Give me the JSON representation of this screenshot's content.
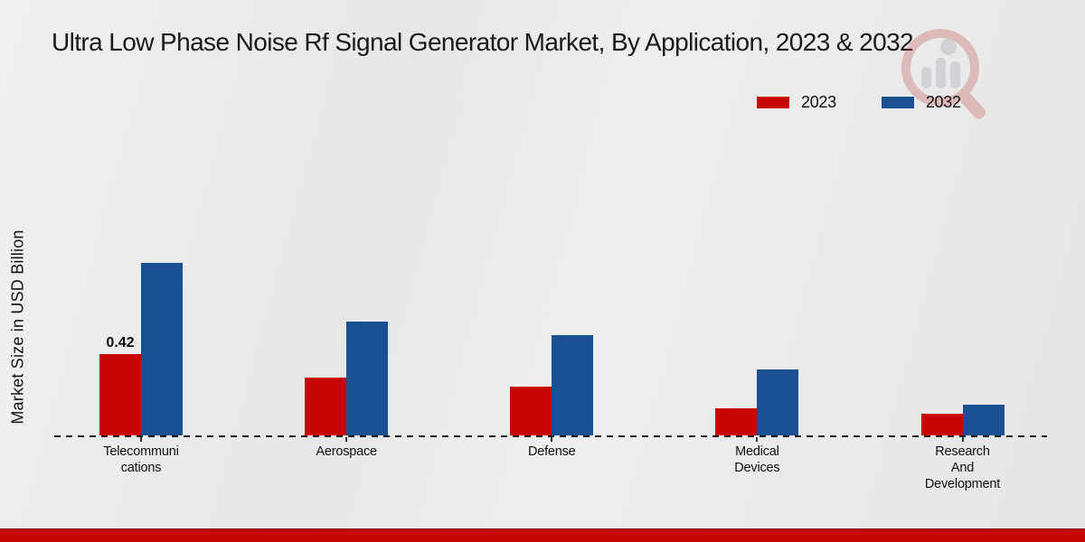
{
  "page": {
    "watermark_icon": "magnifier-analytics-logo",
    "footer_color": "#c40707"
  },
  "chart_data": {
    "type": "bar",
    "title": "Ultra Low Phase Noise Rf Signal Generator Market, By Application, 2023 & 2032",
    "ylabel": "Market Size in USD Billion",
    "xlabel": "",
    "categories": [
      "Telecommunications",
      "Aerospace",
      "Defense",
      "Medical Devices",
      "Research And Development"
    ],
    "tick_labels": [
      "Telecommuni\ncations",
      "Aerospace",
      "Defense",
      "Medical\nDevices",
      "Research\nAnd\nDevelopment"
    ],
    "series": [
      {
        "name": "2023",
        "color": "#c80404",
        "values": [
          0.42,
          0.3,
          0.25,
          0.14,
          0.11
        ]
      },
      {
        "name": "2032",
        "color": "#1a5091",
        "values": [
          0.89,
          0.59,
          0.52,
          0.34,
          0.16
        ]
      }
    ],
    "annotations": [
      {
        "series_index": 0,
        "category_index": 0,
        "text": "0.42"
      }
    ],
    "ylim": [
      0,
      1.0
    ],
    "grid": false,
    "legend_position": "top-right",
    "baseline_style": "dashed"
  }
}
